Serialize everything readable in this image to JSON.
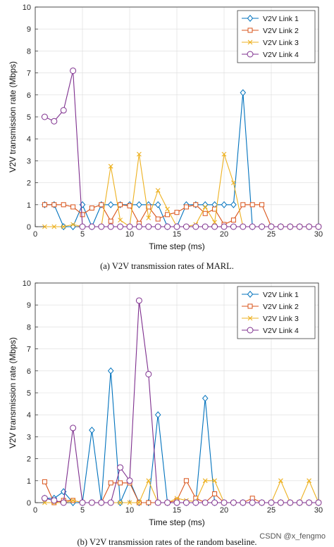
{
  "chart_data": [
    {
      "type": "line",
      "caption": "(a)  V2V transmission rates of MARL.",
      "xlabel": "Time step (ms)",
      "ylabel": "V2V transmission rate (Mbps)",
      "xlim": [
        0,
        30
      ],
      "ylim": [
        0,
        10
      ],
      "xticks": [
        0,
        5,
        10,
        15,
        20,
        25,
        30
      ],
      "yticks": [
        0,
        1,
        2,
        3,
        4,
        5,
        6,
        7,
        8,
        9,
        10
      ],
      "grid": true,
      "legend_position": "top-right",
      "x": [
        1,
        2,
        3,
        4,
        5,
        6,
        7,
        8,
        9,
        10,
        11,
        12,
        13,
        14,
        15,
        16,
        17,
        18,
        19,
        20,
        21,
        22,
        23,
        24,
        25,
        26,
        27,
        28,
        29,
        30
      ],
      "series": [
        {
          "name": "V2V Link 1",
          "color": "#0072BD",
          "marker": "diamond",
          "values": [
            1,
            1,
            0,
            0,
            1,
            0,
            1,
            1,
            1,
            1,
            1,
            1,
            1,
            0,
            0,
            1,
            1,
            1,
            1,
            1,
            1,
            6.1,
            0,
            0,
            0,
            0,
            0,
            0,
            0,
            0
          ]
        },
        {
          "name": "V2V Link 2",
          "color": "#D95319",
          "marker": "square",
          "values": [
            1,
            1,
            1,
            0.9,
            0.55,
            0.85,
            1,
            0.25,
            1,
            0.95,
            0.15,
            0.9,
            0.35,
            0.55,
            0.65,
            0.9,
            1,
            0.6,
            0.8,
            0.1,
            0.3,
            1,
            1,
            1,
            0,
            0,
            0,
            0,
            0,
            0
          ]
        },
        {
          "name": "V2V Link 3",
          "color": "#EDB120",
          "marker": "x",
          "values": [
            0,
            0,
            0,
            0.1,
            0,
            0,
            0,
            2.75,
            0.3,
            0,
            3.3,
            0.4,
            1.65,
            0.8,
            0,
            0,
            0.1,
            0.9,
            0.2,
            3.3,
            2,
            0,
            0,
            0,
            0,
            0,
            0,
            0,
            0,
            0
          ]
        },
        {
          "name": "V2V Link 4",
          "color": "#7E2F8E",
          "marker": "circle",
          "values": [
            5,
            4.8,
            5.3,
            7.1,
            0,
            0,
            0,
            0,
            0,
            0,
            0,
            0,
            0,
            0,
            0,
            0,
            0,
            0,
            0,
            0,
            0,
            0,
            0,
            0,
            0,
            0,
            0,
            0,
            0,
            0
          ]
        }
      ]
    },
    {
      "type": "line",
      "caption": "(b)  V2V transmission rates of the random baseline.",
      "xlabel": "Time step (ms)",
      "ylabel": "V2V transmission rate (Mbps)",
      "xlim": [
        0,
        30
      ],
      "ylim": [
        0,
        10
      ],
      "xticks": [
        0,
        5,
        10,
        15,
        20,
        25,
        30
      ],
      "yticks": [
        0,
        1,
        2,
        3,
        4,
        5,
        6,
        7,
        8,
        9,
        10
      ],
      "grid": true,
      "legend_position": "top-right",
      "x": [
        1,
        2,
        3,
        4,
        5,
        6,
        7,
        8,
        9,
        10,
        11,
        12,
        13,
        14,
        15,
        16,
        17,
        18,
        19,
        20,
        21,
        22,
        23,
        24,
        25,
        26,
        27,
        28,
        29,
        30
      ],
      "series": [
        {
          "name": "V2V Link 1",
          "color": "#0072BD",
          "marker": "diamond",
          "values": [
            0.2,
            0.2,
            0.5,
            0,
            0,
            3.3,
            0,
            6,
            0,
            1,
            0,
            0,
            4,
            0,
            0,
            0,
            0,
            4.75,
            0,
            0,
            0,
            0,
            0,
            0,
            0,
            0,
            0,
            0,
            0,
            0
          ]
        },
        {
          "name": "V2V Link 2",
          "color": "#D95319",
          "marker": "square",
          "values": [
            0.95,
            0,
            0.1,
            0.1,
            0,
            0,
            0,
            0.9,
            0.9,
            0.9,
            0,
            0,
            0,
            0,
            0.1,
            1,
            0.2,
            0,
            0.4,
            0,
            0,
            0,
            0.2,
            0,
            0,
            0,
            0,
            0,
            0,
            0
          ]
        },
        {
          "name": "V2V Link 3",
          "color": "#EDB120",
          "marker": "x",
          "values": [
            0,
            0,
            0,
            0.1,
            0,
            0,
            0,
            0,
            0,
            0,
            0,
            1,
            0,
            0,
            0.2,
            0.1,
            0.05,
            1,
            1,
            0,
            0,
            0,
            0,
            0,
            0,
            1,
            0,
            0,
            1,
            0
          ]
        },
        {
          "name": "V2V Link 4",
          "color": "#7E2F8E",
          "marker": "circle",
          "values": [
            0.2,
            0.1,
            0,
            3.4,
            0,
            0,
            0,
            0,
            1.6,
            1,
            9.2,
            5.85,
            0,
            0,
            0,
            0,
            0,
            0,
            0,
            0,
            0,
            0,
            0,
            0,
            0,
            0,
            0,
            0,
            0,
            0
          ]
        }
      ]
    }
  ],
  "watermark": "CSDN @x_fengmo"
}
